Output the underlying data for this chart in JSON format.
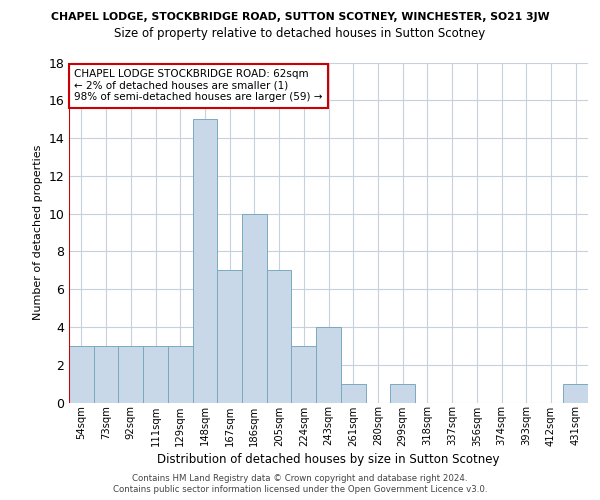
{
  "title_line1": "CHAPEL LODGE, STOCKBRIDGE ROAD, SUTTON SCOTNEY, WINCHESTER, SO21 3JW",
  "title_line2": "Size of property relative to detached houses in Sutton Scotney",
  "xlabel": "Distribution of detached houses by size in Sutton Scotney",
  "ylabel": "Number of detached properties",
  "categories": [
    "54sqm",
    "73sqm",
    "92sqm",
    "111sqm",
    "129sqm",
    "148sqm",
    "167sqm",
    "186sqm",
    "205sqm",
    "224sqm",
    "243sqm",
    "261sqm",
    "280sqm",
    "299sqm",
    "318sqm",
    "337sqm",
    "356sqm",
    "374sqm",
    "393sqm",
    "412sqm",
    "431sqm"
  ],
  "values": [
    3,
    3,
    3,
    3,
    3,
    15,
    7,
    10,
    7,
    3,
    4,
    1,
    0,
    1,
    0,
    0,
    0,
    0,
    0,
    0,
    1
  ],
  "bar_color": "#c8d8e8",
  "bar_edge_color": "#7aaabf",
  "annotation_text": "CHAPEL LODGE STOCKBRIDGE ROAD: 62sqm\n← 2% of detached houses are smaller (1)\n98% of semi-detached houses are larger (59) →",
  "annotation_box_color": "#ffffff",
  "annotation_box_edge_color": "#cc0000",
  "red_line_x": -0.5,
  "ylim": [
    0,
    18
  ],
  "yticks": [
    0,
    2,
    4,
    6,
    8,
    10,
    12,
    14,
    16,
    18
  ],
  "footer_line1": "Contains HM Land Registry data © Crown copyright and database right 2024.",
  "footer_line2": "Contains public sector information licensed under the Open Government Licence v3.0.",
  "background_color": "#ffffff",
  "grid_color": "#c8d0dc"
}
